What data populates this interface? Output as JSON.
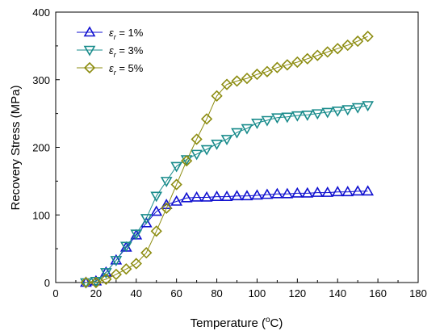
{
  "chart_data": {
    "type": "line",
    "xlabel": "Temperature (",
    "xlabel_sup": "o",
    "xlabel_tail": "C)",
    "ylabel": "Recovery Stress (MPa)",
    "xlim": [
      0,
      180
    ],
    "ylim": [
      0,
      400
    ],
    "xticks": [
      0,
      20,
      40,
      60,
      80,
      100,
      120,
      140,
      160,
      180
    ],
    "yticks": [
      0,
      100,
      200,
      300,
      400
    ],
    "grid": false,
    "legend": "top-left",
    "series": [
      {
        "label_symbol": "ε",
        "label_sub": "r",
        "label_value": " = 1%",
        "color": "#1010d0",
        "marker": "triangle-up",
        "x": [
          15,
          20,
          25,
          30,
          35,
          40,
          45,
          50,
          55,
          60,
          65,
          70,
          75,
          80,
          85,
          90,
          95,
          100,
          105,
          110,
          115,
          120,
          125,
          130,
          135,
          140,
          145,
          150,
          155
        ],
        "y": [
          0,
          2,
          15,
          33,
          52,
          70,
          88,
          105,
          115,
          120,
          125,
          126,
          126,
          127,
          127,
          128,
          128,
          129,
          130,
          131,
          131,
          132,
          132,
          133,
          133,
          134,
          134,
          135,
          135
        ]
      },
      {
        "label_symbol": "ε",
        "label_sub": "r",
        "label_value": " = 3%",
        "color": "#1a8c8c",
        "marker": "triangle-down",
        "x": [
          15,
          20,
          25,
          30,
          35,
          40,
          45,
          50,
          55,
          60,
          65,
          70,
          75,
          80,
          85,
          90,
          95,
          100,
          105,
          110,
          115,
          120,
          125,
          130,
          135,
          140,
          145,
          150,
          155
        ],
        "y": [
          0,
          2,
          15,
          33,
          54,
          72,
          95,
          128,
          150,
          172,
          182,
          190,
          197,
          205,
          212,
          222,
          228,
          236,
          240,
          244,
          245,
          247,
          248,
          250,
          252,
          254,
          256,
          259,
          262
        ]
      },
      {
        "label_symbol": "ε",
        "label_sub": "r",
        "label_value": " = 5%",
        "color": "#8c8c10",
        "marker": "diamond",
        "x": [
          15,
          20,
          25,
          30,
          35,
          40,
          45,
          50,
          55,
          60,
          65,
          70,
          75,
          80,
          85,
          90,
          95,
          100,
          105,
          110,
          115,
          120,
          125,
          130,
          135,
          140,
          145,
          150,
          155
        ],
        "y": [
          0,
          0,
          5,
          12,
          20,
          28,
          44,
          76,
          110,
          145,
          180,
          212,
          242,
          276,
          293,
          298,
          302,
          308,
          312,
          318,
          322,
          326,
          331,
          336,
          341,
          346,
          351,
          357,
          364
        ]
      }
    ]
  }
}
